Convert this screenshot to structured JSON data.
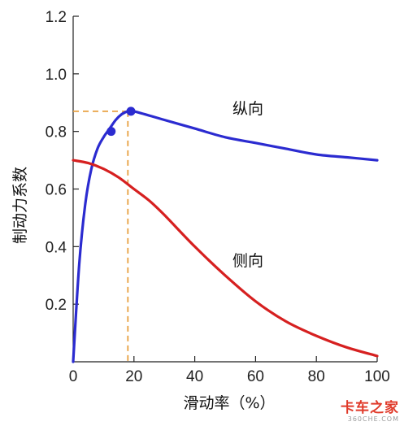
{
  "chart_data": {
    "type": "line",
    "title": "",
    "xlabel": "滑动率（%）",
    "ylabel": "制动力系数",
    "xlim": [
      0,
      100
    ],
    "ylim": [
      0,
      1.2
    ],
    "x_ticks": [
      0,
      20,
      40,
      60,
      80,
      100
    ],
    "y_ticks": [
      0.2,
      0.4,
      0.6,
      0.8,
      1.0,
      1.2
    ],
    "y_tick_labels": [
      "0.2",
      "0.4",
      "0.6",
      "0.8",
      "1.0",
      "1.2"
    ],
    "series": [
      {
        "name": "纵向",
        "color": "#2b2bd0",
        "x": [
          0,
          2,
          4,
          6,
          8,
          10,
          12,
          14,
          16,
          18,
          20,
          30,
          40,
          50,
          60,
          70,
          80,
          90,
          100
        ],
        "y": [
          0,
          0.34,
          0.55,
          0.67,
          0.74,
          0.78,
          0.81,
          0.84,
          0.86,
          0.87,
          0.87,
          0.84,
          0.81,
          0.78,
          0.76,
          0.74,
          0.72,
          0.71,
          0.7
        ],
        "markers": [
          {
            "x": 12.5,
            "y": 0.8
          },
          {
            "x": 19,
            "y": 0.87
          }
        ]
      },
      {
        "name": "侧向",
        "color": "#d62020",
        "x": [
          0,
          5,
          10,
          15,
          20,
          25,
          30,
          40,
          50,
          60,
          70,
          80,
          90,
          100
        ],
        "y": [
          0.7,
          0.69,
          0.67,
          0.64,
          0.6,
          0.56,
          0.51,
          0.4,
          0.3,
          0.21,
          0.14,
          0.09,
          0.05,
          0.02
        ]
      }
    ],
    "reference_lines": {
      "x": 18,
      "y": 0.87,
      "color": "#e8a040"
    }
  },
  "watermark": {
    "text": "卡车之家",
    "subtext": "360CHE.COM"
  }
}
